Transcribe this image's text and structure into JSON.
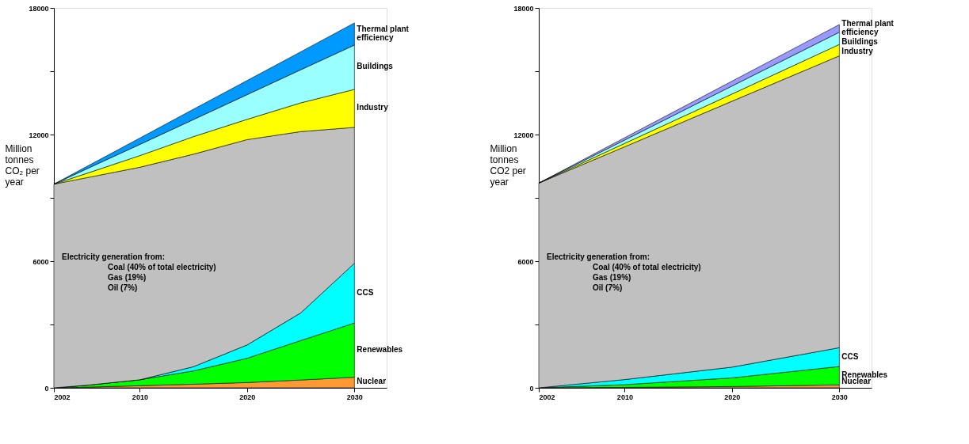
{
  "chart_data": [
    {
      "type": "area",
      "stacked": true,
      "x": [
        2002,
        2005,
        2010,
        2015,
        2020,
        2025,
        2030
      ],
      "xlim": [
        2002,
        2033
      ],
      "xticks": [
        2002,
        2010,
        2020,
        2030
      ],
      "ylim": [
        0,
        18000
      ],
      "yticks": [
        0,
        {
          "value": 3000,
          "label": null
        },
        6000,
        {
          "value": 9000,
          "label": null
        },
        12000,
        {
          "value": 15000,
          "label": null
        },
        18000
      ],
      "ylabel": "Million tonnes CO₂ per year",
      "series": [
        {
          "name": "Nuclear",
          "color": "#ff9933",
          "values": [
            0,
            30,
            100,
            170,
            250,
            370,
            500
          ]
        },
        {
          "name": "Renewables",
          "color": "#00ff00",
          "values": [
            0,
            90,
            280,
            630,
            1150,
            1870,
            2570
          ]
        },
        {
          "name": "CCS",
          "color": "#00ffff",
          "values": [
            0,
            0,
            0,
            200,
            630,
            1310,
            2830
          ]
        },
        {
          "color": "#c0c0c0",
          "values": [
            9650,
            9830,
            10070,
            10070,
            9730,
            8590,
            6440
          ]
        },
        {
          "name": "Industry",
          "color": "#ffff00",
          "values": [
            0,
            200,
            550,
            830,
            960,
            1360,
            1800
          ]
        },
        {
          "name": "Buildings",
          "color": "#99ffff",
          "values": [
            0,
            210,
            530,
            810,
            1170,
            1570,
            2100
          ]
        },
        {
          "name": "Thermal plant efficiency",
          "color": "#0099ff",
          "values": [
            0,
            110,
            300,
            490,
            670,
            850,
            1050
          ]
        }
      ],
      "annotations": [
        "Electricity generation from:",
        "Coal (40% of total electricity)",
        "Gas (19%)",
        "Oil (7%)"
      ]
    },
    {
      "type": "area",
      "stacked": true,
      "x": [
        2002,
        2010,
        2020,
        2030
      ],
      "xlim": [
        2002,
        2033
      ],
      "xticks": [
        2002,
        2010,
        2020,
        2030
      ],
      "ylim": [
        0,
        18000
      ],
      "yticks": [
        0,
        {
          "value": 3000,
          "label": null
        },
        6000,
        {
          "value": 9000,
          "label": null
        },
        12000,
        {
          "value": 15000,
          "label": null
        },
        18000
      ],
      "ylabel": "Million tonnes CO2 per year",
      "series": [
        {
          "name": "Nuclear",
          "color": "#ff9933",
          "values": [
            0,
            20,
            60,
            140
          ]
        },
        {
          "name": "Renewables",
          "color": "#00ff00",
          "values": [
            0,
            130,
            410,
            870
          ]
        },
        {
          "name": "CCS",
          "color": "#00ffff",
          "values": [
            0,
            240,
            510,
            890
          ]
        },
        {
          "color": "#c0c0c0",
          "values": [
            9700,
            11030,
            12600,
            13830
          ]
        },
        {
          "name": "Industry",
          "color": "#ffff00",
          "values": [
            0,
            160,
            340,
            540
          ]
        },
        {
          "name": "Buildings",
          "color": "#99ffff",
          "values": [
            0,
            160,
            380,
            580
          ]
        },
        {
          "name": "Thermal plant efficiency",
          "color": "#9999ff",
          "values": [
            0,
            110,
            230,
            360
          ]
        }
      ],
      "annotations": [
        "Electricity generation from:",
        "Coal (40% of total electricity)",
        "Gas (19%)",
        "Oil (7%)"
      ]
    }
  ]
}
